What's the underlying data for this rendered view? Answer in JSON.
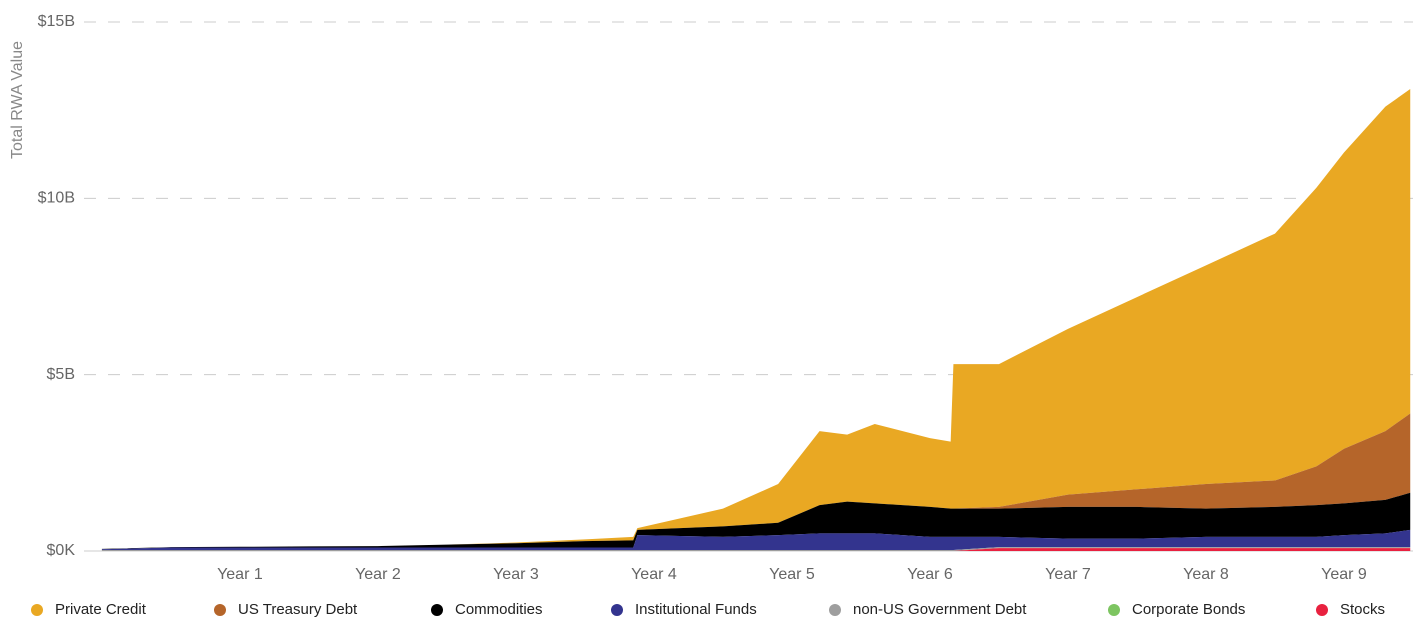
{
  "chart_data": {
    "type": "stacked_area",
    "y_label": "Total RWA Value",
    "x": [
      0,
      0.5,
      1,
      1.5,
      2,
      2.5,
      3,
      3.5,
      3.85,
      3.88,
      4.5,
      4.9,
      5.2,
      5.4,
      5.6,
      6.0,
      6.15,
      6.17,
      6.5,
      7,
      7.5,
      8,
      8.5,
      8.8,
      9,
      9.3,
      9.48
    ],
    "xlim": [
      -0.05,
      9.5
    ],
    "xticks": [
      {
        "value": 1,
        "label": "Year 1"
      },
      {
        "value": 2,
        "label": "Year 2"
      },
      {
        "value": 3,
        "label": "Year 3"
      },
      {
        "value": 4,
        "label": "Year 4"
      },
      {
        "value": 5,
        "label": "Year 5"
      },
      {
        "value": 6,
        "label": "Year 6"
      },
      {
        "value": 7,
        "label": "Year 7"
      },
      {
        "value": 8,
        "label": "Year 8"
      },
      {
        "value": 9,
        "label": "Year 9"
      }
    ],
    "ylim": [
      0,
      15
    ],
    "yticks": [
      {
        "value": 0,
        "label": "$0K"
      },
      {
        "value": 5,
        "label": "$5B"
      },
      {
        "value": 10,
        "label": "$10B"
      },
      {
        "value": 15,
        "label": "$15B"
      }
    ],
    "grid": true,
    "legend": "bottom",
    "series": [
      {
        "name": "Private Credit",
        "color": "#e9a823",
        "values": [
          0,
          0,
          0,
          0,
          0,
          0,
          0.02,
          0.05,
          0.1,
          0.05,
          0.5,
          1.1,
          2.1,
          1.9,
          2.25,
          1.95,
          1.9,
          4.1,
          4.05,
          4.7,
          5.45,
          6.2,
          7.0,
          7.9,
          8.4,
          9.2,
          9.2
        ]
      },
      {
        "name": "US Treasury Debt",
        "color": "#b5652a",
        "values": [
          0,
          0,
          0,
          0,
          0,
          0,
          0,
          0,
          0,
          0,
          0,
          0,
          0,
          0,
          0,
          0,
          0,
          0,
          0.05,
          0.35,
          0.5,
          0.7,
          0.75,
          1.1,
          1.55,
          1.95,
          2.25
        ]
      },
      {
        "name": "Commodities",
        "color": "#000000",
        "values": [
          0.01,
          0.01,
          0.02,
          0.03,
          0.04,
          0.08,
          0.12,
          0.18,
          0.2,
          0.15,
          0.3,
          0.35,
          0.8,
          0.9,
          0.85,
          0.85,
          0.8,
          0.8,
          0.8,
          0.9,
          0.9,
          0.8,
          0.85,
          0.9,
          0.9,
          0.95,
          1.05
        ]
      },
      {
        "name": "Institutional Funds",
        "color": "#33348e",
        "values": [
          0.02,
          0.07,
          0.07,
          0.07,
          0.07,
          0.07,
          0.07,
          0.07,
          0.07,
          0.42,
          0.37,
          0.42,
          0.47,
          0.47,
          0.47,
          0.37,
          0.37,
          0.37,
          0.29,
          0.24,
          0.24,
          0.29,
          0.29,
          0.29,
          0.34,
          0.39,
          0.49
        ]
      },
      {
        "name": "non-US Government Debt",
        "color": "#9e9e9e",
        "values": [
          0.03,
          0.03,
          0.03,
          0.03,
          0.03,
          0.03,
          0.03,
          0.03,
          0.03,
          0.03,
          0.03,
          0.03,
          0.03,
          0.03,
          0.03,
          0.03,
          0.03,
          0.03,
          0.03,
          0.03,
          0.03,
          0.03,
          0.03,
          0.03,
          0.03,
          0.03,
          0.03
        ]
      },
      {
        "name": "Corporate Bonds",
        "color": "#7dc561",
        "values": [
          0,
          0,
          0,
          0,
          0,
          0,
          0,
          0,
          0,
          0,
          0,
          0,
          0,
          0,
          0,
          0,
          0,
          0,
          0,
          0,
          0,
          0,
          0,
          0,
          0,
          0,
          0
        ]
      },
      {
        "name": "Stocks",
        "color": "#e8213f",
        "values": [
          0,
          0,
          0,
          0,
          0,
          0,
          0,
          0,
          0,
          0,
          0,
          0,
          0,
          0,
          0,
          0,
          0,
          0,
          0.08,
          0.08,
          0.08,
          0.08,
          0.08,
          0.08,
          0.08,
          0.08,
          0.08
        ]
      }
    ]
  }
}
